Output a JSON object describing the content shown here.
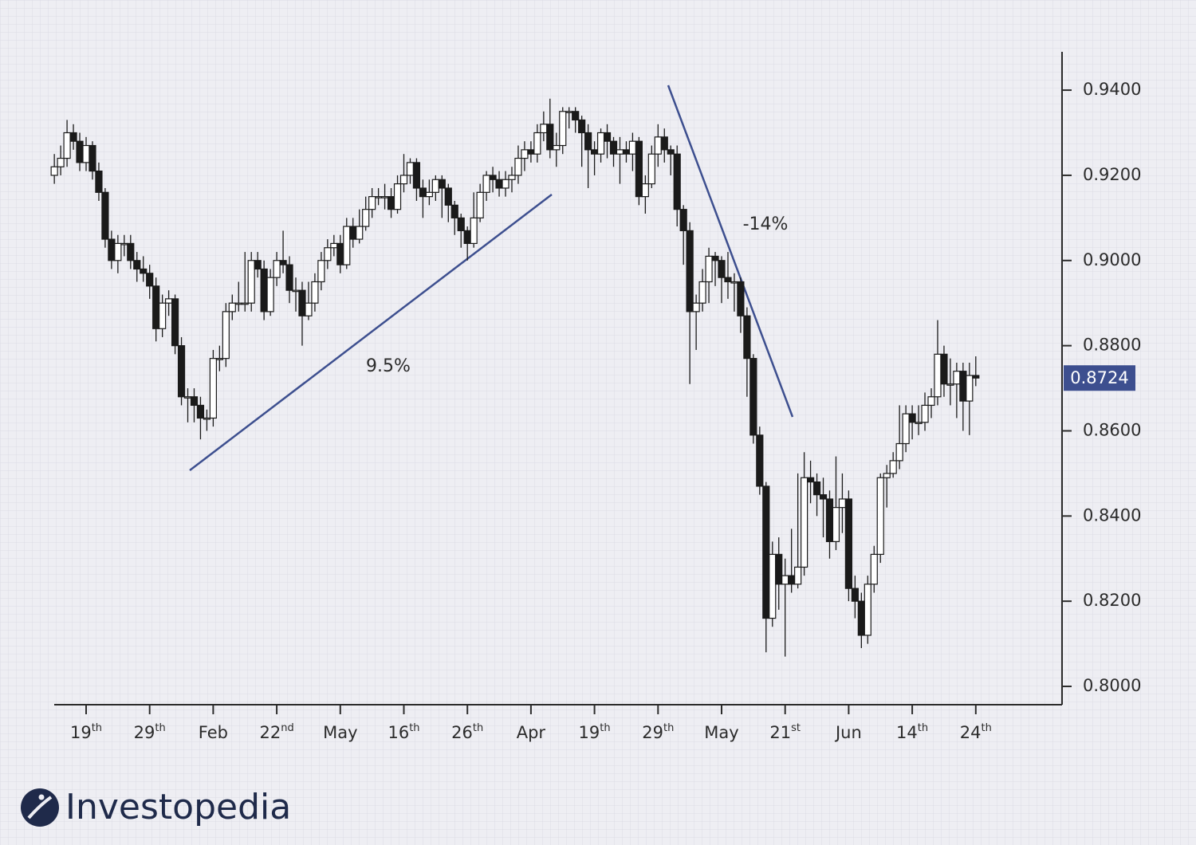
{
  "chart_data": {
    "type": "candlestick",
    "categories": [
      null,
      null,
      null,
      null,
      null,
      "19th",
      null,
      null,
      null,
      null,
      null,
      null,
      null,
      null,
      null,
      "29th",
      null,
      null,
      null,
      null,
      null,
      null,
      null,
      null,
      null,
      "Feb",
      null,
      null,
      null,
      null,
      null,
      null,
      null,
      null,
      null,
      "22nd",
      null,
      null,
      null,
      null,
      null,
      null,
      null,
      null,
      null,
      "May",
      null,
      null,
      null,
      null,
      null,
      null,
      null,
      null,
      null,
      "16th",
      null,
      null,
      null,
      null,
      null,
      null,
      null,
      null,
      null,
      "26th",
      null,
      null,
      null,
      null,
      null,
      null,
      null,
      null,
      null,
      "Apr",
      null,
      null,
      null,
      null,
      null,
      null,
      null,
      null,
      null,
      "19th",
      null,
      null,
      null,
      null,
      null,
      null,
      null,
      null,
      null,
      "29th",
      null,
      null,
      null,
      null,
      null,
      null,
      null,
      null,
      null,
      "May",
      null,
      null,
      null,
      null,
      null,
      null,
      null,
      null,
      null,
      "21st",
      null,
      null,
      null,
      null,
      null,
      null,
      null,
      null,
      null,
      "Jun",
      null,
      null,
      null,
      null,
      null,
      null,
      null,
      null,
      null,
      "14th",
      null,
      null,
      null,
      null,
      null,
      null,
      null,
      null,
      null,
      "24th"
    ],
    "open": [
      0.92,
      0.922,
      0.924,
      0.93,
      0.928,
      0.923,
      0.927,
      0.921,
      0.916,
      0.905,
      0.9,
      0.904,
      0.904,
      0.9,
      0.898,
      0.897,
      0.894,
      0.884,
      0.89,
      0.891,
      0.88,
      0.868,
      0.868,
      0.866,
      0.863,
      0.863,
      0.877,
      0.877,
      0.888,
      0.89,
      0.89,
      0.89,
      0.9,
      0.898,
      0.888,
      0.896,
      0.9,
      0.899,
      0.893,
      0.893,
      0.887,
      0.89,
      0.895,
      0.9,
      0.903,
      0.904,
      0.899,
      0.908,
      0.905,
      0.908,
      0.912,
      0.915,
      0.915,
      0.915,
      0.912,
      0.918,
      0.92,
      0.923,
      0.917,
      0.915,
      0.916,
      0.919,
      0.917,
      0.913,
      0.91,
      0.907,
      0.904,
      0.91,
      0.916,
      0.92,
      0.919,
      0.917,
      0.919,
      0.92,
      0.924,
      0.926,
      0.925,
      0.93,
      0.932,
      0.926,
      0.927,
      0.935,
      0.935,
      0.933,
      0.93,
      0.926,
      0.925,
      0.93,
      0.928,
      0.925,
      0.926,
      0.925,
      0.928,
      0.915,
      0.918,
      0.925,
      0.929,
      0.926,
      0.925,
      0.912,
      0.907,
      0.888,
      0.89,
      0.895,
      0.901,
      0.9,
      0.896,
      0.895,
      0.895,
      0.887,
      0.877,
      0.859,
      0.847,
      0.816,
      0.831,
      0.824,
      0.826,
      0.824,
      0.828,
      0.849,
      0.848,
      0.845,
      0.844,
      0.834,
      0.842,
      0.844,
      0.823,
      0.82,
      0.812,
      0.824,
      0.831,
      0.849,
      0.85,
      0.853,
      0.857,
      0.864,
      0.862,
      0.862,
      0.866,
      0.868,
      0.878,
      0.871,
      0.871,
      0.874,
      0.867,
      0.873
    ],
    "high": [
      0.925,
      0.927,
      0.933,
      0.932,
      0.93,
      0.929,
      0.928,
      0.923,
      0.917,
      0.907,
      0.906,
      0.906,
      0.906,
      0.902,
      0.901,
      0.899,
      0.896,
      0.892,
      0.893,
      0.892,
      0.882,
      0.87,
      0.87,
      0.868,
      0.865,
      0.879,
      0.88,
      0.89,
      0.892,
      0.895,
      0.902,
      0.902,
      0.902,
      0.9,
      0.898,
      0.902,
      0.907,
      0.901,
      0.896,
      0.895,
      0.895,
      0.897,
      0.902,
      0.905,
      0.906,
      0.906,
      0.91,
      0.91,
      0.912,
      0.915,
      0.917,
      0.917,
      0.918,
      0.917,
      0.92,
      0.925,
      0.924,
      0.924,
      0.919,
      0.919,
      0.92,
      0.92,
      0.918,
      0.914,
      0.911,
      0.908,
      0.916,
      0.918,
      0.921,
      0.922,
      0.921,
      0.921,
      0.922,
      0.927,
      0.928,
      0.928,
      0.932,
      0.935,
      0.938,
      0.93,
      0.936,
      0.936,
      0.936,
      0.934,
      0.932,
      0.928,
      0.931,
      0.932,
      0.929,
      0.929,
      0.928,
      0.93,
      0.929,
      0.92,
      0.927,
      0.932,
      0.931,
      0.927,
      0.927,
      0.913,
      0.909,
      0.892,
      0.898,
      0.903,
      0.902,
      0.901,
      0.902,
      0.897,
      0.896,
      0.889,
      0.878,
      0.861,
      0.848,
      0.834,
      0.835,
      0.83,
      0.837,
      0.85,
      0.855,
      0.853,
      0.85,
      0.849,
      0.846,
      0.854,
      0.85,
      0.846,
      0.826,
      0.822,
      0.826,
      0.833,
      0.85,
      0.852,
      0.855,
      0.866,
      0.866,
      0.866,
      0.866,
      0.869,
      0.87,
      0.886,
      0.88,
      0.877,
      0.876,
      0.876,
      0.876,
      0.8775
    ],
    "low": [
      0.918,
      0.92,
      0.922,
      0.926,
      0.921,
      0.921,
      0.919,
      0.914,
      0.903,
      0.898,
      0.897,
      0.901,
      0.898,
      0.895,
      0.895,
      0.891,
      0.881,
      0.882,
      0.887,
      0.878,
      0.866,
      0.862,
      0.862,
      0.858,
      0.86,
      0.861,
      0.874,
      0.875,
      0.886,
      0.888,
      0.888,
      0.888,
      0.896,
      0.886,
      0.887,
      0.894,
      0.897,
      0.89,
      0.888,
      0.88,
      0.886,
      0.888,
      0.893,
      0.898,
      0.901,
      0.897,
      0.898,
      0.903,
      0.904,
      0.907,
      0.91,
      0.913,
      0.912,
      0.91,
      0.911,
      0.916,
      0.918,
      0.914,
      0.91,
      0.913,
      0.914,
      0.91,
      0.909,
      0.906,
      0.903,
      0.9,
      0.903,
      0.909,
      0.914,
      0.916,
      0.915,
      0.915,
      0.916,
      0.918,
      0.921,
      0.923,
      0.923,
      0.928,
      0.924,
      0.922,
      0.925,
      0.931,
      0.93,
      0.922,
      0.917,
      0.92,
      0.923,
      0.924,
      0.922,
      0.918,
      0.923,
      0.921,
      0.913,
      0.911,
      0.917,
      0.922,
      0.923,
      0.92,
      0.908,
      0.899,
      0.871,
      0.879,
      0.888,
      0.89,
      0.894,
      0.89,
      0.891,
      0.888,
      0.883,
      0.868,
      0.857,
      0.845,
      0.808,
      0.814,
      0.818,
      0.807,
      0.822,
      0.823,
      0.826,
      0.843,
      0.84,
      0.835,
      0.83,
      0.832,
      0.836,
      0.82,
      0.816,
      0.809,
      0.81,
      0.822,
      0.829,
      0.842,
      0.849,
      0.851,
      0.855,
      0.858,
      0.859,
      0.86,
      0.863,
      0.866,
      0.868,
      0.866,
      0.863,
      0.86,
      0.859,
      0.8705
    ],
    "close": [
      0.922,
      0.924,
      0.93,
      0.928,
      0.923,
      0.927,
      0.921,
      0.916,
      0.905,
      0.9,
      0.904,
      0.904,
      0.9,
      0.898,
      0.897,
      0.894,
      0.884,
      0.89,
      0.891,
      0.88,
      0.868,
      0.868,
      0.866,
      0.863,
      0.863,
      0.877,
      0.877,
      0.888,
      0.89,
      0.89,
      0.89,
      0.9,
      0.898,
      0.888,
      0.896,
      0.9,
      0.899,
      0.893,
      0.893,
      0.887,
      0.89,
      0.895,
      0.9,
      0.903,
      0.904,
      0.899,
      0.908,
      0.905,
      0.908,
      0.912,
      0.915,
      0.915,
      0.915,
      0.912,
      0.918,
      0.92,
      0.923,
      0.917,
      0.915,
      0.916,
      0.919,
      0.917,
      0.913,
      0.91,
      0.907,
      0.904,
      0.91,
      0.916,
      0.92,
      0.919,
      0.917,
      0.919,
      0.92,
      0.924,
      0.926,
      0.925,
      0.93,
      0.932,
      0.926,
      0.927,
      0.935,
      0.935,
      0.933,
      0.93,
      0.926,
      0.925,
      0.93,
      0.928,
      0.925,
      0.926,
      0.925,
      0.928,
      0.915,
      0.918,
      0.925,
      0.929,
      0.926,
      0.925,
      0.912,
      0.907,
      0.888,
      0.89,
      0.895,
      0.901,
      0.9,
      0.896,
      0.895,
      0.895,
      0.887,
      0.877,
      0.859,
      0.847,
      0.816,
      0.831,
      0.824,
      0.826,
      0.824,
      0.828,
      0.849,
      0.848,
      0.845,
      0.844,
      0.834,
      0.842,
      0.844,
      0.823,
      0.82,
      0.812,
      0.824,
      0.831,
      0.849,
      0.85,
      0.853,
      0.857,
      0.864,
      0.862,
      0.862,
      0.866,
      0.868,
      0.878,
      0.871,
      0.871,
      0.874,
      0.867,
      0.873,
      0.8724
    ],
    "ylim": [
      0.7957,
      0.949
    ],
    "yticks": [
      {
        "value": 0.8,
        "label": "0.8000"
      },
      {
        "value": 0.82,
        "label": "0.8200"
      },
      {
        "value": 0.84,
        "label": "0.8400"
      },
      {
        "value": 0.86,
        "label": "0.8600"
      },
      {
        "value": 0.88,
        "label": "0.8800"
      },
      {
        "value": 0.9,
        "label": "0.9000"
      },
      {
        "value": 0.92,
        "label": "0.9200"
      },
      {
        "value": 0.94,
        "label": "0.9400"
      }
    ],
    "last_price": {
      "value": 0.8724,
      "label": "0.8724"
    },
    "up_color": "#ffffff",
    "down_color": "#1a1a1a",
    "accent_color": "#3d4f8f",
    "annotations": [
      "9.5%",
      "-14%"
    ]
  },
  "brand": "Investopedia"
}
